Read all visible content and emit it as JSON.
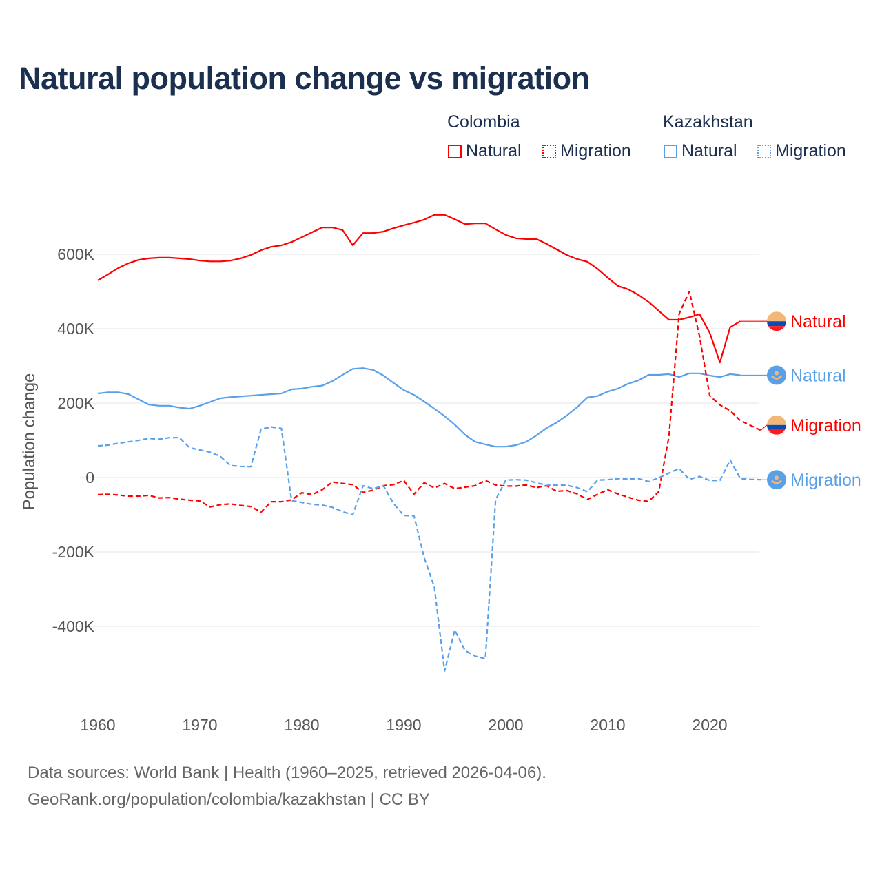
{
  "title": "Natural population change vs migration",
  "legend": {
    "groups": [
      {
        "name": "Colombia",
        "items": [
          "Natural",
          "Migration"
        ]
      },
      {
        "name": "Kazakhstan",
        "items": [
          "Natural",
          "Migration"
        ]
      }
    ]
  },
  "footer": {
    "line1": "Data sources: World Bank | Health (1960–2025, retrieved 2026-04-06).",
    "line2": "GeoRank.org/population/colombia/kazakhstan | CC BY"
  },
  "colors": {
    "colombia": "#ff0000",
    "kazakhstan": "#5aa0e8",
    "title": "#1b2f4e"
  },
  "chart_data": {
    "type": "line",
    "title": "Natural population change vs migration",
    "xlabel": "",
    "ylabel": "Population change",
    "xlim": [
      1960,
      2025
    ],
    "ylim": [
      -600,
      750
    ],
    "x_ticks": [
      1960,
      1970,
      1980,
      1990,
      2000,
      2010,
      2020
    ],
    "y_ticks": [
      -400,
      -200,
      0,
      200,
      400,
      600
    ],
    "y_tick_labels": [
      "-400K",
      "-200K",
      "0",
      "200K",
      "400K",
      "600K"
    ],
    "units": "thousands",
    "grid": true,
    "legend_placement": "top-right",
    "series": [
      {
        "name": "Colombia Natural",
        "end_label": "Natural",
        "country": "colombia",
        "style": "solid",
        "start_year": 1960,
        "values": [
          530,
          546,
          563,
          576,
          585,
          589,
          591,
          591,
          589,
          587,
          583,
          581,
          581,
          583,
          589,
          598,
          611,
          620,
          624,
          633,
          646,
          659,
          672,
          672,
          665,
          624,
          657,
          657,
          661,
          670,
          678,
          685,
          693,
          706,
          706,
          694,
          681,
          683,
          683,
          667,
          652,
          643,
          641,
          641,
          628,
          613,
          598,
          587,
          580,
          561,
          537,
          515,
          506,
          491,
          472,
          448,
          424,
          424,
          431,
          439,
          389,
          309,
          404,
          420
        ]
      },
      {
        "name": "Kazakhstan Natural",
        "end_label": "Natural",
        "country": "kazakhstan",
        "style": "solid",
        "start_year": 1960,
        "values": [
          226,
          229,
          229,
          224,
          210,
          196,
          193,
          193,
          188,
          185,
          193,
          203,
          213,
          216,
          218,
          220,
          222,
          224,
          226,
          237,
          239,
          244,
          247,
          259,
          276,
          292,
          294,
          289,
          274,
          254,
          235,
          222,
          204,
          185,
          165,
          142,
          115,
          96,
          89,
          83,
          83,
          87,
          96,
          113,
          133,
          148,
          167,
          189,
          215,
          219,
          231,
          239,
          252,
          261,
          276,
          276,
          278,
          270,
          280,
          280,
          274,
          270,
          278,
          275
        ]
      },
      {
        "name": "Colombia Migration",
        "end_label": "Migration",
        "country": "colombia",
        "style": "dashed",
        "start_year": 1960,
        "values": [
          -46,
          -45,
          -47,
          -50,
          -50,
          -48,
          -55,
          -54,
          -58,
          -61,
          -63,
          -79,
          -73,
          -71,
          -75,
          -78,
          -93,
          -65,
          -65,
          -60,
          -41,
          -46,
          -33,
          -12,
          -16,
          -19,
          -40,
          -34,
          -22,
          -19,
          -8,
          -45,
          -14,
          -28,
          -16,
          -30,
          -26,
          -22,
          -8,
          -20,
          -23,
          -23,
          -20,
          -27,
          -22,
          -37,
          -35,
          -44,
          -59,
          -45,
          -33,
          -44,
          -53,
          -61,
          -64,
          -38,
          110,
          440,
          500,
          380,
          220,
          195,
          180,
          153,
          140,
          127
        ]
      },
      {
        "name": "Kazakhstan Migration",
        "end_label": "Migration",
        "country": "kazakhstan",
        "style": "dashed",
        "start_year": 1960,
        "values": [
          85,
          87,
          92,
          96,
          100,
          105,
          103,
          107,
          107,
          80,
          74,
          68,
          57,
          32,
          30,
          29,
          130,
          136,
          132,
          -62,
          -67,
          -72,
          -74,
          -80,
          -92,
          -100,
          -22,
          -30,
          -22,
          -70,
          -102,
          -103,
          -215,
          -295,
          -520,
          -410,
          -465,
          -480,
          -487,
          -60,
          -7,
          -6,
          -7,
          -14,
          -21,
          -20,
          -21,
          -27,
          -38,
          -7,
          -6,
          -3,
          -4,
          -3,
          -11,
          -1,
          12,
          24,
          -5,
          3,
          -8,
          -8,
          47,
          -3,
          -5,
          -6
        ]
      }
    ]
  }
}
